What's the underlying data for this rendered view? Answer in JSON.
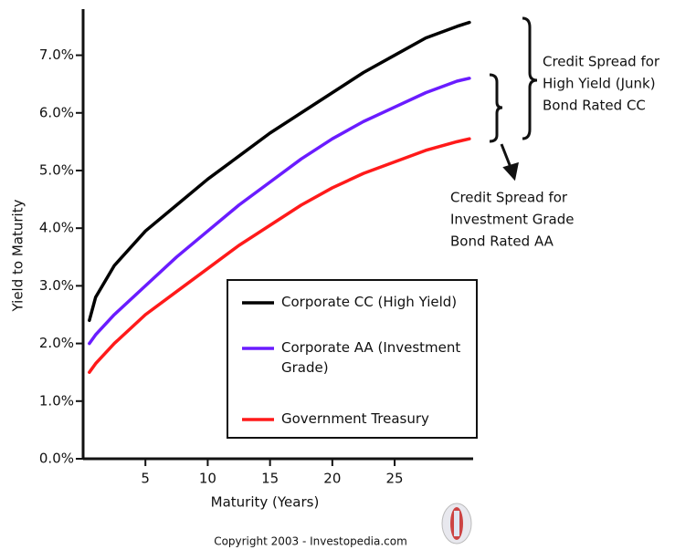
{
  "chart_data": {
    "type": "line",
    "x_label": "Maturity (Years)",
    "y_label": "Yield to Maturity",
    "x": [
      0.5,
      1,
      2.5,
      5,
      7.5,
      10,
      12.5,
      15,
      17.5,
      20,
      22.5,
      25,
      27.5,
      30,
      31
    ],
    "series": [
      {
        "name": "Corporate CC (High Yield)",
        "color": "#000000",
        "values": [
          2.4,
          2.8,
          3.35,
          3.95,
          4.4,
          4.85,
          5.25,
          5.65,
          6.0,
          6.35,
          6.7,
          7.0,
          7.3,
          7.5,
          7.57
        ]
      },
      {
        "name": "Corporate AA (Investment Grade)",
        "color": "#6a1cff",
        "values": [
          2.0,
          2.15,
          2.5,
          3.0,
          3.5,
          3.95,
          4.4,
          4.8,
          5.2,
          5.55,
          5.85,
          6.1,
          6.35,
          6.55,
          6.6
        ]
      },
      {
        "name": "Government Treasury",
        "color": "#ff1a1a",
        "values": [
          1.5,
          1.65,
          2.0,
          2.5,
          2.9,
          3.3,
          3.7,
          4.05,
          4.4,
          4.7,
          4.95,
          5.15,
          5.35,
          5.5,
          5.55
        ]
      }
    ],
    "xlim": [
      0,
      31.3
    ],
    "ylim": [
      0,
      7.8
    ],
    "xticks": [
      5,
      10,
      15,
      20,
      25
    ],
    "yticks": [
      {
        "value": 0,
        "label": "0.0%"
      },
      {
        "value": 1,
        "label": "1.0%"
      },
      {
        "value": 2,
        "label": "2.0%"
      },
      {
        "value": 3,
        "label": "3.0%"
      },
      {
        "value": 4,
        "label": "4.0%"
      },
      {
        "value": 5,
        "label": "5.0%"
      },
      {
        "value": 6,
        "label": "6.0%"
      },
      {
        "value": 7,
        "label": "7.0%"
      }
    ],
    "annotations": [
      {
        "lines": [
          "Credit Spread for",
          "High Yield (Junk)",
          "Bond Rated CC"
        ]
      },
      {
        "lines": [
          "Credit Spread for",
          "Investment Grade",
          "Bond Rated AA"
        ]
      }
    ],
    "copyright": "Copyright 2003 - Investopedia.com"
  }
}
